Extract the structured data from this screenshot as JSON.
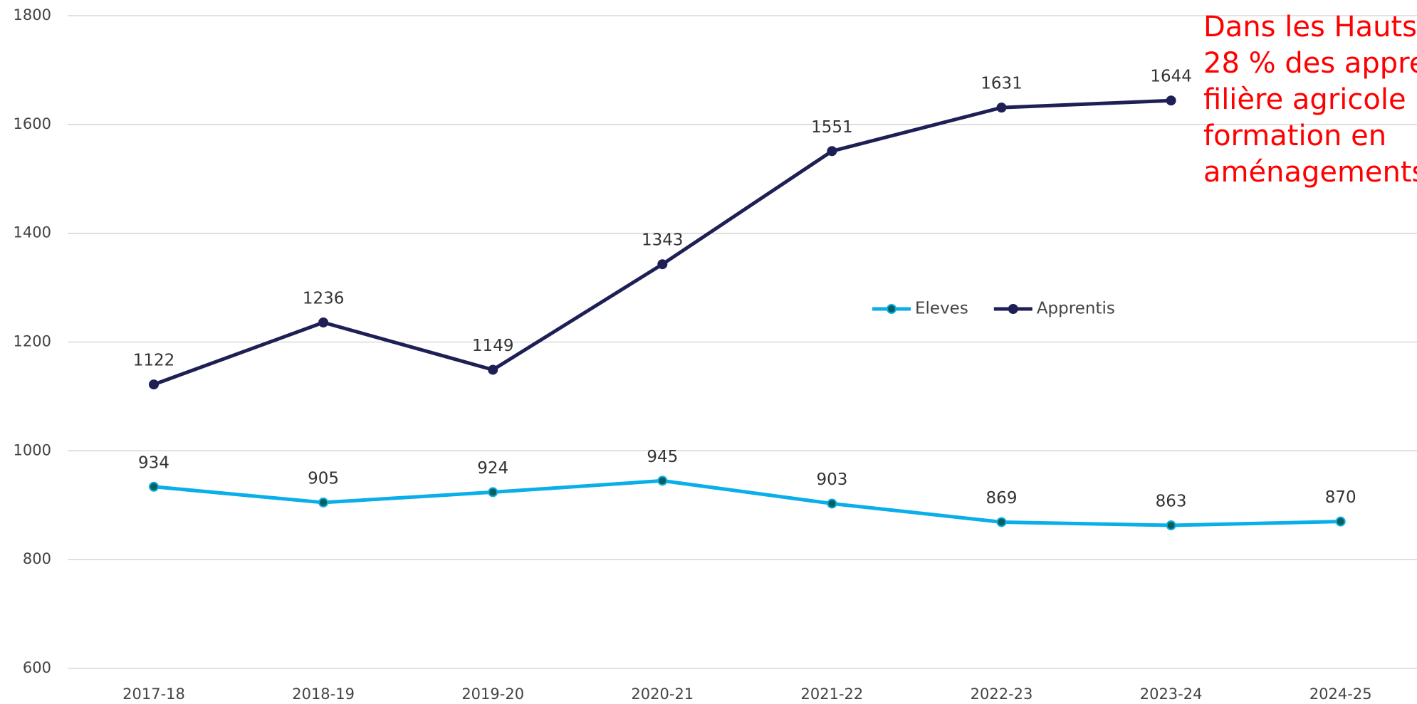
{
  "chart_data": {
    "type": "line",
    "categories": [
      "2017-18",
      "2018-19",
      "2019-20",
      "2020-21",
      "2021-22",
      "2022-23",
      "2023-24",
      "2024-25"
    ],
    "series": [
      {
        "name": "Eleves",
        "color": "#0aaee8",
        "marker_color": "#0b5f5a",
        "values": [
          934,
          905,
          924,
          945,
          903,
          869,
          863,
          870
        ]
      },
      {
        "name": "Apprentis",
        "color": "#1e1f55",
        "marker_color": "#1e1f55",
        "values": [
          1122,
          1236,
          1149,
          1343,
          1551,
          1631,
          1644,
          null
        ]
      }
    ],
    "ylim": [
      600,
      1800
    ],
    "yticks": [
      600,
      800,
      1000,
      1200,
      1400,
      1600,
      1800
    ],
    "grid": true,
    "legend": "center",
    "data_labels": true,
    "annotation": {
      "color": "#ff0000",
      "lines": [
        "Dans les Hauts",
        "28 % des appre",
        "filière agricole",
        "formation en",
        "aménagements"
      ]
    }
  }
}
